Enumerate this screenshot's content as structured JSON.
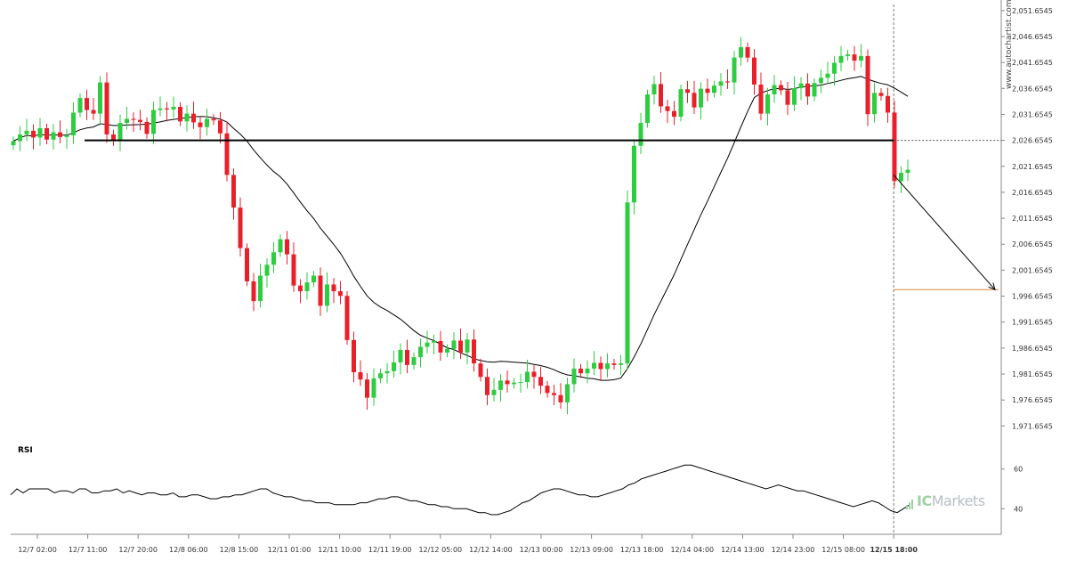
{
  "watermark": "www.autochartist.com",
  "brand": {
    "prefix": "IC",
    "suffix": "Markets"
  },
  "colors": {
    "up": "#2ecc40",
    "down": "#e8202a",
    "level": "#000000",
    "target": "#d88a3a",
    "ma": "#000000"
  },
  "chart_data": [
    {
      "type": "candlestick",
      "title": "",
      "y_ticks": [
        "2,051.6545",
        "2,046.6545",
        "2,041.6545",
        "2,036.6545",
        "2,031.6545",
        "2,026.6545",
        "2,021.6545",
        "2,016.6545",
        "2,011.6545",
        "2,006.6545",
        "2,001.6545",
        "1,996.6545",
        "1,991.6545",
        "1,986.6545",
        "1,981.6545",
        "1,976.6545",
        "1,971.6545"
      ],
      "x_ticks": [
        "12/7 02:00",
        "12/7 11:00",
        "12/7 20:00",
        "12/8 06:00",
        "12/8 15:00",
        "12/11 01:00",
        "12/11 10:00",
        "12/11 19:00",
        "12/12 05:00",
        "12/12 14:00",
        "12/13 00:00",
        "12/13 09:00",
        "12/13 18:00",
        "12/14 04:00",
        "12/14 13:00",
        "12/14 23:00",
        "12/15 08:00",
        "12/15 18:00"
      ],
      "highlight_tick": "12/15 18:00",
      "ylim": [
        1969.6545,
        2052.6545
      ],
      "levels": {
        "support_resistance": 2026.6545,
        "target": 1997.9,
        "projection_from": 2020.0,
        "projection_to": 1997.9
      },
      "close": [
        2026.5,
        2027.8,
        2028.5,
        2027.2,
        2029.0,
        2026.8,
        2028.2,
        2027.3,
        2027.6,
        2032.0,
        2034.8,
        2032.5,
        2031.8,
        2037.8,
        2027.8,
        2026.5,
        2030.0,
        2030.8,
        2030.6,
        2030.2,
        2027.9,
        2032.5,
        2032.8,
        2032.6,
        2033.1,
        2030.3,
        2031.8,
        2030.1,
        2029.2,
        2030.8,
        2030.5,
        2028.0,
        2020.0,
        2013.7,
        2005.9,
        1999.5,
        1995.7,
        2000.6,
        2002.7,
        2005.1,
        2007.6,
        2004.7,
        1998.7,
        1997.6,
        1999.3,
        2000.6,
        1994.8,
        1998.9,
        1997.6,
        1996.7,
        1988.2,
        1982.0,
        1980.6,
        1977.1,
        1980.8,
        1981.8,
        1982.2,
        1983.9,
        1986.3,
        1983.4,
        1984.9,
        1986.9,
        1987.7,
        1988.0,
        1985.8,
        1986.5,
        1988.1,
        1985.8,
        1988.3,
        1983.7,
        1981.1,
        1977.6,
        1978.6,
        1980.4,
        1979.7,
        1980.0,
        1980.1,
        1982.1,
        1981.1,
        1979.4,
        1978.0,
        1977.6,
        1976.2,
        1979.7,
        1982.7,
        1981.8,
        1982.7,
        1983.8,
        1982.6,
        1983.7,
        1983.4,
        1983.7,
        2014.7,
        2025.6,
        2030.0,
        2035.5,
        2037.5,
        2033.2,
        2032.3,
        2031.2,
        2036.5,
        2035.8,
        2033.0,
        2036.6,
        2035.8,
        2037.2,
        2038.0,
        2037.8,
        2042.6,
        2044.6,
        2042.6,
        2037.4,
        2031.8,
        2035.5,
        2037.3,
        2036.3,
        2033.5,
        2036.7,
        2037.6,
        2035.1,
        2037.7,
        2038.7,
        2039.5,
        2041.6,
        2042.9,
        2043.2,
        2042.0,
        2042.9,
        2031.7,
        2035.8,
        2035.2,
        2032.0,
        2018.8,
        2020.4,
        2021.0
      ]
    },
    {
      "type": "line",
      "title": "RSI",
      "y_ticks": [
        "60",
        "40"
      ],
      "ylim": [
        28,
        72
      ],
      "values": [
        47,
        50,
        48,
        50,
        50,
        50,
        50,
        48,
        49,
        49,
        48,
        50,
        50,
        48,
        48,
        49,
        49,
        50,
        48,
        49,
        48,
        47,
        48,
        48,
        47,
        47,
        48,
        46,
        46,
        47,
        47,
        46,
        45,
        45,
        46,
        46,
        47,
        47,
        48,
        49,
        50,
        50,
        48,
        47,
        46,
        46,
        45,
        44,
        44,
        43,
        43,
        43,
        42,
        42,
        42,
        42,
        43,
        43,
        44,
        45,
        45,
        46,
        46,
        45,
        44,
        44,
        43,
        42,
        42,
        41,
        41,
        40,
        40,
        40,
        39,
        38,
        38,
        37,
        37,
        38,
        39,
        41,
        43,
        44,
        46,
        48,
        49,
        50,
        50,
        49,
        48,
        47,
        47,
        46,
        46,
        47,
        48,
        49,
        50,
        52,
        53,
        55,
        56,
        57,
        58,
        59,
        60,
        61,
        62,
        62,
        61,
        60,
        59,
        58,
        57,
        56,
        55,
        54,
        53,
        52,
        51,
        50,
        51,
        52,
        51,
        50,
        49,
        49,
        48,
        47,
        46,
        45,
        44,
        43,
        42,
        41,
        42,
        43,
        44,
        43,
        41,
        39,
        38,
        40,
        42
      ]
    }
  ]
}
